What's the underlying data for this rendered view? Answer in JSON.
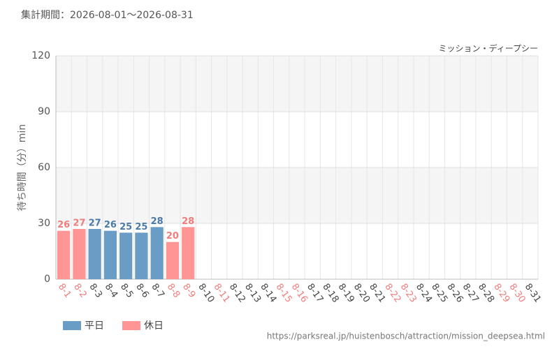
{
  "chart_data": {
    "type": "bar",
    "subtitle": "集計期間：2026-08-01～2026-08-31",
    "annotation": "ミッション・ディープシー",
    "y_label": "待ち時間（分）min",
    "source": "https://parksreal.jp/huistenbosch/attraction/mission_deepsea.html",
    "categories": [
      "8-1",
      "8-2",
      "8-3",
      "8-4",
      "8-5",
      "8-6",
      "8-7",
      "8-8",
      "8-9",
      "8-10",
      "8-11",
      "8-12",
      "8-13",
      "8-14",
      "8-15",
      "8-16",
      "8-17",
      "8-18",
      "8-19",
      "8-20",
      "8-21",
      "8-22",
      "8-23",
      "8-24",
      "8-25",
      "8-26",
      "8-27",
      "8-28",
      "8-29",
      "8-30",
      "8-31"
    ],
    "category_label_colors": [
      "#f07c7c",
      "#f07c7c",
      "#444",
      "#444",
      "#444",
      "#444",
      "#444",
      "#f07c7c",
      "#f07c7c",
      "#444",
      "#f07c7c",
      "#444",
      "#444",
      "#444",
      "#f07c7c",
      "#f07c7c",
      "#444",
      "#444",
      "#444",
      "#444",
      "#444",
      "#f07c7c",
      "#f07c7c",
      "#444",
      "#444",
      "#444",
      "#444",
      "#444",
      "#f07c7c",
      "#f07c7c",
      "#444"
    ],
    "series": [
      {
        "name": "平日",
        "color": "#6a9dc6",
        "label_color": "#4a7aa8",
        "values": [
          null,
          null,
          27,
          26,
          25,
          25,
          28,
          null,
          null,
          null,
          null,
          null,
          null,
          null,
          null,
          null,
          null,
          null,
          null,
          null,
          null,
          null,
          null,
          null,
          null,
          null,
          null,
          null,
          null,
          null,
          null
        ]
      },
      {
        "name": "休日",
        "color": "#ff9595",
        "label_color": "#f07c7c",
        "values": [
          26,
          27,
          null,
          null,
          null,
          null,
          null,
          20,
          28,
          null,
          null,
          null,
          null,
          null,
          null,
          null,
          null,
          null,
          null,
          null,
          null,
          null,
          null,
          null,
          null,
          null,
          null,
          null,
          null,
          null,
          null
        ]
      }
    ],
    "ylim": [
      0,
      120
    ],
    "yticks": [
      0,
      30,
      60,
      90,
      120
    ],
    "grid": true
  }
}
